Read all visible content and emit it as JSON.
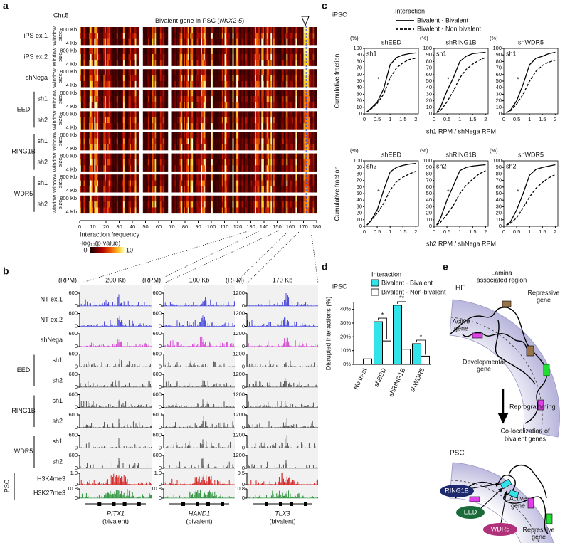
{
  "panel_a": {
    "label": "a",
    "chromosome": "Chr.5",
    "title": [
      "Bivalent gene in PSC (",
      "NKX2-5",
      ")"
    ],
    "samples": [
      "iPS ex.1",
      "iPS ex.2",
      "shNega"
    ],
    "groups": [
      {
        "name": "EED",
        "samples": [
          "sh1",
          "sh2"
        ]
      },
      {
        "name": "RING1B",
        "samples": [
          "sh1",
          "sh2"
        ]
      },
      {
        "name": "WDR5",
        "samples": [
          "sh1",
          "sh2"
        ]
      }
    ],
    "window_top": "800 Kb",
    "window_bottom": "4 Kb",
    "window_axis": [
      "Window",
      "size"
    ],
    "xlim": [
      0,
      180
    ],
    "xticks": [
      0,
      10,
      20,
      30,
      40,
      50,
      60,
      70,
      80,
      90,
      100,
      110,
      120,
      130,
      140,
      150,
      160,
      170,
      180
    ],
    "legend_title": "Interaction frequency",
    "legend_subtitle": "-log₁₀(p-value)",
    "colorbar_ticks": [
      0,
      10
    ]
  },
  "panel_b": {
    "label": "b",
    "unit": "(RPM)",
    "samples": [
      "NT ex.1",
      "NT ex.2",
      "shNega"
    ],
    "groups": [
      {
        "name": "EED",
        "samples": [
          "sh1",
          "sh2"
        ]
      },
      {
        "name": "RING1B",
        "samples": [
          "sh1",
          "sh2"
        ]
      },
      {
        "name": "WDR5",
        "samples": [
          "sh1",
          "sh2"
        ]
      }
    ],
    "marks_group": "PSC",
    "marks": [
      "H3K4me3",
      "H3K27me3"
    ],
    "gene_note": "(bivalent)",
    "columns": [
      {
        "scale": "200 Kb",
        "gene": "PITX1",
        "rpm_ticks": [
          0,
          600
        ],
        "h3k4me3_ticks": [
          0,
          {
            "value": 1,
            "label": "1.0"
          }
        ],
        "h3k27me3_ticks": [
          0,
          10.8
        ]
      },
      {
        "scale": "100 Kb",
        "gene": "HAND1",
        "rpm_ticks": [
          0,
          600
        ],
        "h3k4me3_ticks": [
          0,
          {
            "value": 1,
            "label": "1.0"
          }
        ],
        "h3k27me3_ticks": [
          0,
          10.8
        ]
      },
      {
        "scale": "170 Kb",
        "gene": "TLX3",
        "rpm_ticks": [
          0,
          1200
        ],
        "h3k4me3_ticks": [
          0,
          0.5
        ],
        "h3k27me3_ticks": [
          0,
          10.8
        ]
      }
    ]
  },
  "chart_data": [
    {
      "type": "line",
      "panel_label": "c",
      "subtitle": "iPSC",
      "legend_title": "Interaction",
      "series": [
        {
          "name": "Bivalent - Bivalent",
          "color": "#000000",
          "dash": false
        },
        {
          "name": "Bivalent - Non bivalent",
          "color": "#000000",
          "dash": true
        }
      ],
      "y_label": "Cumulative fraction",
      "y_unit": "(%)",
      "x_labels": [
        "sh1 RPM / shNega RPM",
        "sh2 RPM / shNega RPM"
      ],
      "x": [
        0.1,
        0.25,
        0.5,
        0.75,
        1,
        1.25,
        1.5,
        1.75,
        2
      ],
      "xlim": [
        0,
        2.1
      ],
      "xticks": [
        0,
        0.5,
        1,
        1.5,
        2
      ],
      "ylim": [
        0,
        100
      ],
      "yticks": [
        0,
        10,
        20,
        30,
        40,
        50,
        60,
        70,
        80,
        90,
        100
      ],
      "panels": [
        {
          "title": "shEED",
          "label": "sh1",
          "annotation": "*",
          "values": [
            [
              3,
              8,
              18,
              38,
              75,
              86,
              90,
              92,
              93
            ],
            [
              3,
              7,
              16,
              30,
              55,
              70,
              78,
              83,
              85
            ]
          ]
        },
        {
          "title": "shRING1B",
          "label": "sh1",
          "annotation": "*",
          "values": [
            [
              2,
              10,
              35,
              55,
              80,
              88,
              92,
              93,
              94
            ],
            [
              2,
              5,
              18,
              35,
              55,
              68,
              76,
              82,
              86
            ]
          ]
        },
        {
          "title": "shWDR5",
          "label": "sh1",
          "annotation": "*",
          "values": [
            [
              2,
              5,
              20,
              45,
              75,
              85,
              88,
              92,
              94
            ],
            [
              2,
              4,
              15,
              30,
              50,
              65,
              74,
              79,
              82
            ]
          ]
        },
        {
          "title": "shEED",
          "label": "sh2",
          "annotation": "*",
          "values": [
            [
              2,
              8,
              25,
              55,
              83,
              90,
              93,
              95,
              96
            ],
            [
              2,
              8,
              20,
              35,
              55,
              68,
              75,
              80,
              84
            ]
          ]
        },
        {
          "title": "shRING1B",
          "label": "sh2",
          "annotation": "*",
          "values": [
            [
              2,
              12,
              40,
              62,
              85,
              90,
              92,
              93,
              94
            ],
            [
              2,
              6,
              18,
              32,
              50,
              63,
              72,
              80,
              85
            ]
          ]
        },
        {
          "title": "shWDR5",
          "label": "sh2",
          "annotation": "*",
          "values": [
            [
              2,
              6,
              25,
              50,
              78,
              87,
              90,
              92,
              94
            ],
            [
              2,
              4,
              13,
              28,
              45,
              58,
              67,
              74,
              79
            ]
          ]
        }
      ]
    },
    {
      "type": "bar",
      "panel_label": "d",
      "subtitle": "iPSC",
      "legend_title": "Interaction",
      "y_label": "Disrupted interactions (%)",
      "categories": [
        "No treat",
        "shEED",
        "shRING1B",
        "shWDR5"
      ],
      "series": [
        {
          "name": "Bivalent - Bivalent",
          "color": "#33e3ea",
          "values": [
            null,
            31,
            43,
            15
          ]
        },
        {
          "name": "Bivalent - Non-bivalent",
          "color": "#ffffff",
          "values": [
            4,
            17,
            11,
            6
          ]
        }
      ],
      "annotations": [
        null,
        "*",
        "**",
        "*"
      ],
      "ylim": [
        0,
        45
      ],
      "yticks": [
        {
          "value": 0,
          "label": "0%"
        },
        {
          "value": 10,
          "label": "10%"
        },
        {
          "value": 20,
          "label": "20%"
        },
        {
          "value": 30,
          "label": "30%"
        },
        {
          "value": 40,
          "label": "40%"
        }
      ]
    }
  ],
  "panel_e": {
    "label": "e",
    "top_state": "HF",
    "lamina": [
      "Lamina",
      "associated region"
    ],
    "repressive_gene_top": [
      "Repressive",
      "gene"
    ],
    "active_gene_top": [
      "Active",
      "gene"
    ],
    "developmental_gene": [
      "Developmental",
      "gene"
    ],
    "transition": "Reprogramming",
    "colocalization": [
      "Co-localization of",
      "bivalent genes"
    ],
    "bottom_state": "PSC",
    "proteins": [
      "RING1B",
      "EED",
      "WDR5"
    ],
    "active_gene_bottom": [
      "Active",
      "gene"
    ],
    "repressive_gene_bottom": [
      "Repressive",
      "gene"
    ]
  }
}
